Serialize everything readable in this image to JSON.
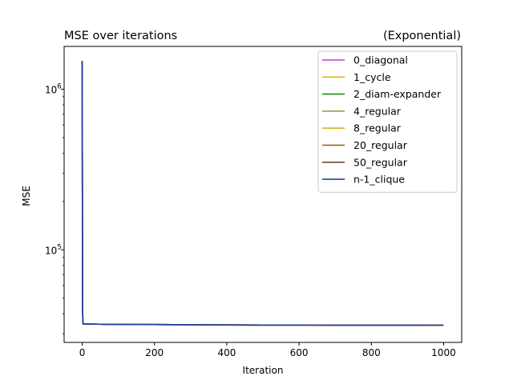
{
  "chart_data": {
    "type": "line",
    "title": "MSE over iterations",
    "subtitle": "(Exponential)",
    "xlabel": "Iteration",
    "ylabel": "MSE",
    "yscale": "log",
    "xlim": [
      -50,
      1050
    ],
    "ylim": [
      26500,
      1850000
    ],
    "x_ticks": [
      0,
      200,
      400,
      600,
      800,
      1000
    ],
    "y_major_ticks": [
      100000,
      1000000
    ],
    "y_major_tick_labels": [
      "10^5",
      "10^6"
    ],
    "y_minor_ticks": [
      30000,
      40000,
      50000,
      60000,
      70000,
      80000,
      90000,
      200000,
      300000,
      400000,
      500000,
      600000,
      700000,
      800000,
      900000
    ],
    "grid": false,
    "legend_position": "upper right",
    "series": [
      {
        "name": "0_diagonal",
        "color": "#cc33dd",
        "x": [
          0,
          1,
          2,
          5,
          10,
          50,
          100,
          200,
          300,
          400,
          500,
          600,
          700,
          800,
          900,
          1000
        ],
        "y": [
          1500000,
          44000,
          34600,
          34500,
          34480,
          34400,
          34330,
          34220,
          34120,
          34050,
          34000,
          33970,
          33950,
          33940,
          33930,
          33920
        ]
      },
      {
        "name": "1_cycle",
        "color": "#e6b800",
        "x": [
          0,
          1,
          2,
          5,
          10,
          50,
          100,
          200,
          300,
          400,
          500,
          600,
          700,
          800,
          900,
          1000
        ],
        "y": [
          1500000,
          44000,
          34600,
          34500,
          34480,
          34400,
          34330,
          34220,
          34120,
          34050,
          34000,
          33970,
          33950,
          33940,
          33930,
          33920
        ]
      },
      {
        "name": "2_diam-expander",
        "color": "#1a8c1a",
        "x": [
          0,
          1,
          2,
          5,
          10,
          50,
          100,
          200,
          300,
          400,
          500,
          600,
          700,
          800,
          900,
          1000
        ],
        "y": [
          1500000,
          44000,
          34600,
          34500,
          34480,
          34400,
          34330,
          34220,
          34120,
          34050,
          34000,
          33970,
          33950,
          33940,
          33930,
          33920
        ]
      },
      {
        "name": "4_regular",
        "color": "#8fa64a",
        "x": [
          0,
          1,
          2,
          5,
          10,
          50,
          100,
          200,
          300,
          400,
          500,
          600,
          700,
          800,
          900,
          1000
        ],
        "y": [
          1500000,
          44000,
          34600,
          34500,
          34480,
          34400,
          34330,
          34220,
          34120,
          34050,
          34000,
          33970,
          33950,
          33940,
          33930,
          33920
        ]
      },
      {
        "name": "8_regular",
        "color": "#d4b428",
        "x": [
          0,
          1,
          2,
          5,
          10,
          50,
          100,
          200,
          300,
          400,
          500,
          600,
          700,
          800,
          900,
          1000
        ],
        "y": [
          1500000,
          44000,
          34600,
          34500,
          34480,
          34400,
          34330,
          34220,
          34120,
          34050,
          34000,
          33970,
          33950,
          33940,
          33930,
          33920
        ]
      },
      {
        "name": "20_regular",
        "color": "#8f5f0a",
        "x": [
          0,
          1,
          2,
          5,
          10,
          50,
          100,
          200,
          300,
          400,
          500,
          600,
          700,
          800,
          900,
          1000
        ],
        "y": [
          1500000,
          44000,
          34600,
          34500,
          34480,
          34400,
          34330,
          34220,
          34120,
          34050,
          34000,
          33970,
          33950,
          33940,
          33930,
          33920
        ]
      },
      {
        "name": "50_regular",
        "color": "#6b4a32",
        "x": [
          0,
          1,
          2,
          5,
          10,
          50,
          100,
          200,
          300,
          400,
          500,
          600,
          700,
          800,
          900,
          1000
        ],
        "y": [
          1500000,
          44000,
          34600,
          34500,
          34480,
          34400,
          34330,
          34220,
          34120,
          34050,
          34000,
          33970,
          33950,
          33940,
          33930,
          33920
        ]
      },
      {
        "name": "n-1_clique",
        "color": "#2340a8",
        "x": [
          0,
          1,
          2,
          5,
          10,
          50,
          100,
          200,
          300,
          400,
          500,
          600,
          700,
          800,
          900,
          1000
        ],
        "y": [
          1500000,
          44000,
          34600,
          34500,
          34480,
          34400,
          34330,
          34220,
          34120,
          34050,
          34000,
          33970,
          33950,
          33940,
          33930,
          33920
        ]
      }
    ]
  }
}
